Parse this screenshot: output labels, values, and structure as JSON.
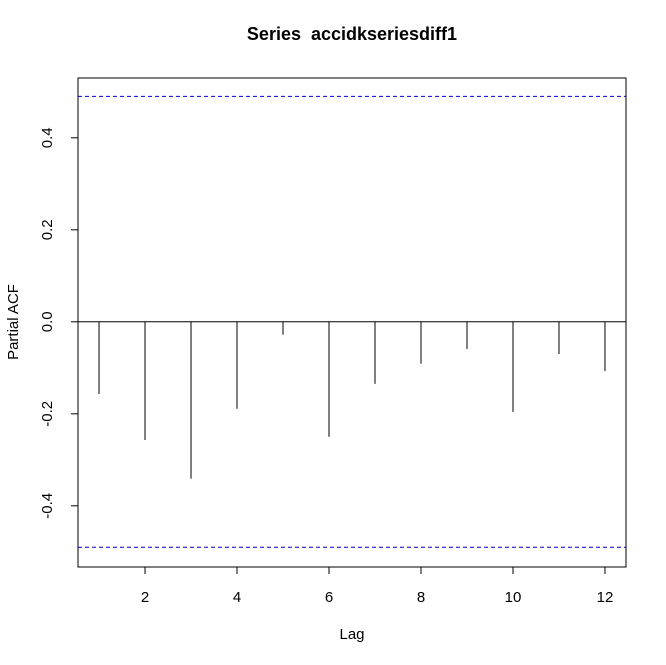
{
  "chart_data": {
    "type": "stem",
    "title": "Series  accidkseriesdiff1",
    "x_label": "Lag",
    "y_label": "Partial ACF",
    "x": [
      1,
      2,
      3,
      4,
      5,
      6,
      7,
      8,
      9,
      10,
      11,
      12
    ],
    "values": [
      -0.157,
      -0.257,
      -0.341,
      -0.189,
      -0.028,
      -0.25,
      -0.135,
      -0.091,
      -0.059,
      -0.196,
      -0.07,
      -0.107
    ],
    "color": "#000000",
    "confidence_band": [
      -0.49,
      0.49
    ],
    "confidence_color": "#0000cc",
    "xlim": [
      0.543,
      12.457
    ],
    "xticks": [
      2,
      4,
      6,
      8,
      10,
      12
    ],
    "ylim": [
      -0.533,
      0.53
    ],
    "yticks": [
      -0.4,
      -0.2,
      {
        "value": 0,
        "label": "0.0"
      },
      0.2,
      0.4
    ]
  }
}
